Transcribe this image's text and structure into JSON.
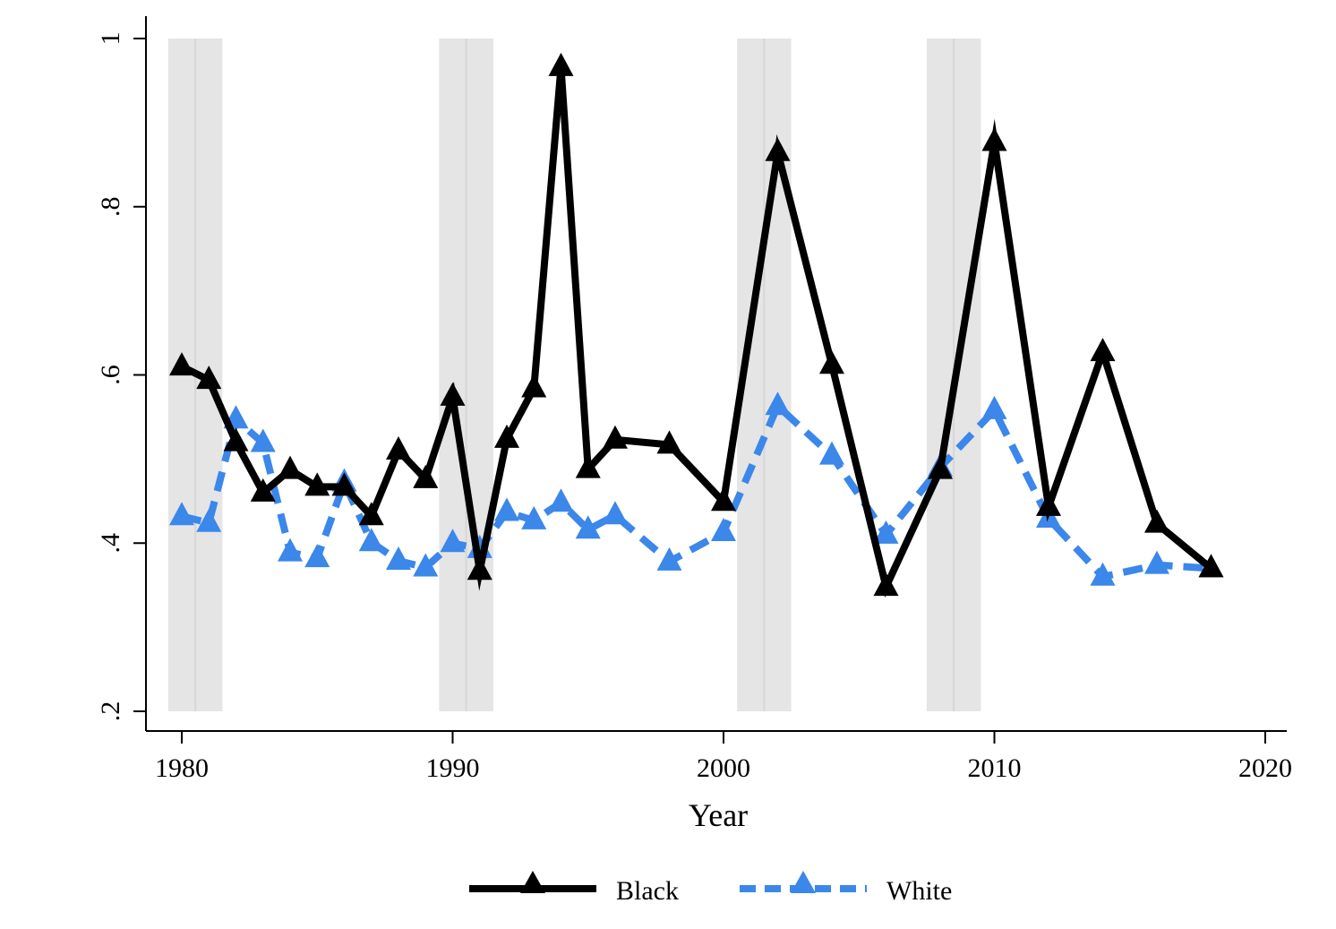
{
  "chart_data": {
    "type": "line",
    "title": "",
    "xlabel": "Year",
    "ylabel": "",
    "xlim": [
      1979,
      2021
    ],
    "ylim": [
      0.18,
      1.02
    ],
    "x_ticks": [
      1980,
      1990,
      2000,
      2010,
      2020
    ],
    "x_tick_labels": [
      "1980",
      "1990",
      "2000",
      "2010",
      "2020"
    ],
    "y_ticks": [
      0.2,
      0.4,
      0.6,
      0.8,
      1.0
    ],
    "y_tick_labels": [
      ".2",
      ".4",
      ".6",
      ".8",
      "1"
    ],
    "grid": false,
    "legend_position": "bottom",
    "shaded_periods": [
      {
        "start": 1979.5,
        "end": 1981.5
      },
      {
        "start": 1989.5,
        "end": 1991.5
      },
      {
        "start": 2000.5,
        "end": 2002.5
      },
      {
        "start": 2007.5,
        "end": 2009.5
      }
    ],
    "shade_color": "#e5e5e5",
    "series": [
      {
        "name": "Black",
        "color": "#000000",
        "dash": "solid",
        "marker": "triangle",
        "points": [
          [
            1980,
            0.61
          ],
          [
            1981,
            0.594
          ],
          [
            1982,
            0.52
          ],
          [
            1983,
            0.46
          ],
          [
            1984,
            0.487
          ],
          [
            1985,
            0.467
          ],
          [
            1986,
            0.467
          ],
          [
            1987,
            0.432
          ],
          [
            1988,
            0.51
          ],
          [
            1989,
            0.476
          ],
          [
            1990,
            0.574
          ],
          [
            1991,
            0.367
          ],
          [
            1992,
            0.524
          ],
          [
            1993,
            0.584
          ],
          [
            1994,
            0.966
          ],
          [
            1995,
            0.488
          ],
          [
            1996,
            0.523
          ],
          [
            1998,
            0.517
          ],
          [
            2000,
            0.449
          ],
          [
            2002,
            0.865
          ],
          [
            2004,
            0.612
          ],
          [
            2006,
            0.348
          ],
          [
            2008,
            0.487
          ],
          [
            2010,
            0.877
          ],
          [
            2012,
            0.443
          ],
          [
            2014,
            0.627
          ],
          [
            2016,
            0.423
          ],
          [
            2018,
            0.37
          ]
        ]
      },
      {
        "name": "White",
        "color": "#3b87ea",
        "dash": "dashed",
        "marker": "triangle",
        "points": [
          [
            1980,
            0.432
          ],
          [
            1981,
            0.424
          ],
          [
            1982,
            0.547
          ],
          [
            1983,
            0.519
          ],
          [
            1984,
            0.389
          ],
          [
            1985,
            0.382
          ],
          [
            1986,
            0.472
          ],
          [
            1987,
            0.401
          ],
          [
            1988,
            0.379
          ],
          [
            1989,
            0.371
          ],
          [
            1990,
            0.4
          ],
          [
            1991,
            0.393
          ],
          [
            1992,
            0.437
          ],
          [
            1993,
            0.427
          ],
          [
            1994,
            0.448
          ],
          [
            1995,
            0.416
          ],
          [
            1996,
            0.433
          ],
          [
            1998,
            0.378
          ],
          [
            2000,
            0.413
          ],
          [
            2002,
            0.563
          ],
          [
            2004,
            0.504
          ],
          [
            2006,
            0.41
          ],
          [
            2008,
            0.49
          ],
          [
            2010,
            0.558
          ],
          [
            2012,
            0.429
          ],
          [
            2014,
            0.36
          ],
          [
            2016,
            0.374
          ],
          [
            2018,
            0.37
          ]
        ]
      }
    ]
  }
}
